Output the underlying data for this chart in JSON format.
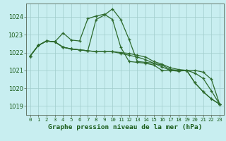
{
  "title": "Graphe pression niveau de la mer (hPa)",
  "bg_color": "#c8eef0",
  "line_color": "#2d6a2d",
  "grid_color": "#a0cccc",
  "ylim": [
    1018.5,
    1024.75
  ],
  "xlim": [
    -0.5,
    23.5
  ],
  "yticks": [
    1019,
    1020,
    1021,
    1022,
    1023,
    1024
  ],
  "xticks": [
    0,
    1,
    2,
    3,
    4,
    5,
    6,
    7,
    8,
    9,
    10,
    11,
    12,
    13,
    14,
    15,
    16,
    17,
    18,
    19,
    20,
    21,
    22,
    23
  ],
  "series": [
    [
      1021.8,
      1022.4,
      1022.65,
      1022.6,
      1022.3,
      1022.2,
      1022.15,
      1022.1,
      1023.85,
      1024.1,
      1024.45,
      1023.85,
      1022.75,
      1021.5,
      1021.45,
      1021.4,
      1021.3,
      1021.05,
      1021.0,
      1021.0,
      1020.3,
      1019.8,
      1019.4,
      1019.1
    ],
    [
      1021.8,
      1022.4,
      1022.65,
      1022.6,
      1022.3,
      1022.2,
      1022.15,
      1022.1,
      1022.05,
      1022.05,
      1022.05,
      1022.0,
      1021.95,
      1021.85,
      1021.75,
      1021.5,
      1021.35,
      1021.15,
      1021.05,
      1021.0,
      1020.85,
      1020.55,
      1019.85,
      1019.1
    ],
    [
      1021.8,
      1022.4,
      1022.65,
      1022.6,
      1023.1,
      1022.7,
      1022.65,
      1023.9,
      1024.05,
      1024.15,
      1023.85,
      1022.3,
      1021.5,
      1021.45,
      1021.4,
      1021.3,
      1021.0,
      1021.0,
      1020.95,
      1021.0,
      1020.3,
      1019.8,
      1019.4,
      1019.1
    ],
    [
      1021.8,
      1022.4,
      1022.65,
      1022.6,
      1022.3,
      1022.2,
      1022.15,
      1022.1,
      1022.05,
      1022.05,
      1022.05,
      1021.95,
      1021.85,
      1021.75,
      1021.6,
      1021.4,
      1021.2,
      1021.0,
      1021.0,
      1021.0,
      1021.0,
      1020.9,
      1020.5,
      1019.1
    ]
  ]
}
